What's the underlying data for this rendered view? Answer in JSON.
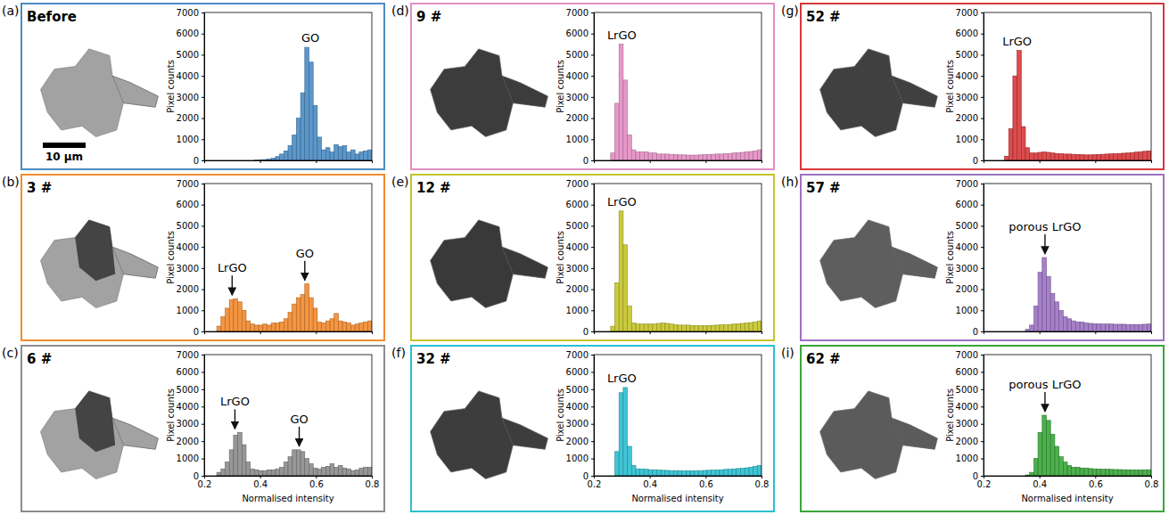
{
  "chart_data": [
    {
      "type": "histogram",
      "panel": "(a)",
      "title": "Before",
      "color": "#4a8cc4",
      "scale_bar": "10 μm",
      "bins": [
        0.2,
        0.215,
        0.23,
        0.245,
        0.26,
        0.275,
        0.29,
        0.305,
        0.32,
        0.335,
        0.35,
        0.365,
        0.38,
        0.395,
        0.41,
        0.425,
        0.44,
        0.455,
        0.47,
        0.485,
        0.5,
        0.515,
        0.53,
        0.545,
        0.56,
        0.575,
        0.59,
        0.605,
        0.62,
        0.635,
        0.65,
        0.665,
        0.68,
        0.695,
        0.71,
        0.725,
        0.74,
        0.755,
        0.77,
        0.785,
        0.8
      ],
      "values": [
        0,
        0,
        0,
        0,
        0,
        0,
        0,
        0,
        0,
        0,
        0,
        0,
        10,
        20,
        40,
        60,
        100,
        180,
        300,
        450,
        700,
        1200,
        2000,
        3200,
        5350,
        4650,
        2600,
        1100,
        500,
        600,
        400,
        750,
        650,
        700,
        400,
        500,
        300,
        400,
        450,
        500
      ],
      "xlim": [
        0.2,
        0.8
      ],
      "ylim": [
        0,
        7000
      ],
      "xticks": [
        0.2,
        0.4,
        0.6,
        0.8
      ],
      "yticks": [
        0,
        1000,
        2000,
        3000,
        4000,
        5000,
        6000,
        7000
      ],
      "y_label": "Pixel counts",
      "tick_labels": "y",
      "annotations": [
        {
          "text": "GO",
          "x": 0.58
        }
      ]
    },
    {
      "type": "histogram",
      "panel": "(b)",
      "title": "3 #",
      "color": "#f28a2e",
      "bins": [
        0.2,
        0.215,
        0.23,
        0.245,
        0.26,
        0.275,
        0.29,
        0.305,
        0.32,
        0.335,
        0.35,
        0.365,
        0.38,
        0.395,
        0.41,
        0.425,
        0.44,
        0.455,
        0.47,
        0.485,
        0.5,
        0.515,
        0.53,
        0.545,
        0.56,
        0.575,
        0.59,
        0.605,
        0.62,
        0.635,
        0.65,
        0.665,
        0.68,
        0.695,
        0.71,
        0.725,
        0.74,
        0.755,
        0.77,
        0.785,
        0.8
      ],
      "values": [
        0,
        0,
        0,
        250,
        700,
        1100,
        1500,
        1550,
        1400,
        1000,
        500,
        350,
        300,
        300,
        350,
        300,
        400,
        400,
        450,
        600,
        900,
        1300,
        1600,
        1750,
        2250,
        1600,
        1100,
        450,
        400,
        500,
        600,
        850,
        500,
        450,
        400,
        300,
        350,
        400,
        450,
        500
      ],
      "xlim": [
        0.2,
        0.8
      ],
      "ylim": [
        0,
        7000
      ],
      "xticks": [
        0.2,
        0.4,
        0.6,
        0.8
      ],
      "yticks": [
        0,
        1000,
        2000,
        3000,
        4000,
        5000,
        6000,
        7000
      ],
      "y_label": "Pixel counts",
      "tick_labels": "y",
      "annotations": [
        {
          "text": "LrGO",
          "x": 0.3,
          "marker": "arrow"
        },
        {
          "text": "GO",
          "x": 0.56,
          "marker": "arrow"
        }
      ]
    },
    {
      "type": "histogram",
      "panel": "(c)",
      "title": "6 #",
      "color": "#8c8c8c",
      "bins": [
        0.2,
        0.215,
        0.23,
        0.245,
        0.26,
        0.275,
        0.29,
        0.305,
        0.32,
        0.335,
        0.35,
        0.365,
        0.38,
        0.395,
        0.41,
        0.425,
        0.44,
        0.455,
        0.47,
        0.485,
        0.5,
        0.515,
        0.53,
        0.545,
        0.56,
        0.575,
        0.59,
        0.605,
        0.62,
        0.635,
        0.65,
        0.665,
        0.68,
        0.695,
        0.71,
        0.725,
        0.74,
        0.755,
        0.77,
        0.785,
        0.8
      ],
      "values": [
        0,
        0,
        0,
        200,
        400,
        800,
        1500,
        2350,
        2500,
        1800,
        800,
        400,
        350,
        300,
        300,
        350,
        350,
        400,
        500,
        800,
        1100,
        1500,
        1500,
        1400,
        1000,
        700,
        450,
        400,
        500,
        550,
        700,
        500,
        600,
        450,
        400,
        300,
        350,
        450,
        500,
        500
      ],
      "xlim": [
        0.2,
        0.8
      ],
      "ylim": [
        0,
        7000
      ],
      "xticks": [
        0.2,
        0.4,
        0.6,
        0.8
      ],
      "yticks": [
        0,
        1000,
        2000,
        3000,
        4000,
        5000,
        6000,
        7000
      ],
      "y_label": "Pixel counts",
      "x_label": "Normalised intensity",
      "annotations": [
        {
          "text": "LrGO",
          "x": 0.31,
          "marker": "arrow"
        },
        {
          "text": "GO",
          "x": 0.54,
          "marker": "arrow"
        }
      ]
    },
    {
      "type": "histogram",
      "panel": "(d)",
      "title": "9 #",
      "color": "#e38ec3",
      "bins": [
        0.2,
        0.215,
        0.23,
        0.245,
        0.26,
        0.275,
        0.29,
        0.305,
        0.32,
        0.335,
        0.35,
        0.365,
        0.38,
        0.395,
        0.41,
        0.425,
        0.44,
        0.455,
        0.47,
        0.485,
        0.5,
        0.515,
        0.53,
        0.545,
        0.56,
        0.575,
        0.59,
        0.605,
        0.62,
        0.635,
        0.65,
        0.665,
        0.68,
        0.695,
        0.71,
        0.725,
        0.74,
        0.755,
        0.77,
        0.785,
        0.8
      ],
      "values": [
        0,
        0,
        0,
        0,
        350,
        2700,
        5500,
        3800,
        1200,
        500,
        400,
        400,
        400,
        350,
        350,
        300,
        300,
        300,
        280,
        270,
        260,
        260,
        250,
        250,
        250,
        260,
        270,
        280,
        290,
        300,
        300,
        320,
        330,
        350,
        360,
        380,
        400,
        420,
        450,
        500
      ],
      "xlim": [
        0.2,
        0.8
      ],
      "ylim": [
        0,
        7000
      ],
      "xticks": [
        0.2,
        0.4,
        0.6,
        0.8
      ],
      "yticks": [
        0,
        1000,
        2000,
        3000,
        4000,
        5000,
        6000,
        7000
      ],
      "y_label": "Pixel counts",
      "tick_labels": "y",
      "annotations": [
        {
          "text": "LrGO",
          "x": 0.3
        }
      ]
    },
    {
      "type": "histogram",
      "panel": "(e)",
      "title": "12 #",
      "color": "#c4c42a",
      "bins": [
        0.2,
        0.215,
        0.23,
        0.245,
        0.26,
        0.275,
        0.29,
        0.305,
        0.32,
        0.335,
        0.35,
        0.365,
        0.38,
        0.395,
        0.41,
        0.425,
        0.44,
        0.455,
        0.47,
        0.485,
        0.5,
        0.515,
        0.53,
        0.545,
        0.56,
        0.575,
        0.59,
        0.605,
        0.62,
        0.635,
        0.65,
        0.665,
        0.68,
        0.695,
        0.71,
        0.725,
        0.74,
        0.755,
        0.77,
        0.785,
        0.8
      ],
      "values": [
        0,
        0,
        0,
        0,
        250,
        2300,
        5700,
        4100,
        1200,
        400,
        350,
        350,
        350,
        350,
        350,
        380,
        400,
        380,
        350,
        320,
        300,
        300,
        300,
        280,
        280,
        270,
        270,
        280,
        290,
        300,
        310,
        320,
        330,
        350,
        360,
        380,
        400,
        420,
        450,
        500
      ],
      "xlim": [
        0.2,
        0.8
      ],
      "ylim": [
        0,
        7000
      ],
      "xticks": [
        0.2,
        0.4,
        0.6,
        0.8
      ],
      "yticks": [
        0,
        1000,
        2000,
        3000,
        4000,
        5000,
        6000,
        7000
      ],
      "y_label": "Pixel counts",
      "tick_labels": "y",
      "annotations": [
        {
          "text": "LrGO",
          "x": 0.3
        }
      ]
    },
    {
      "type": "histogram",
      "panel": "(f)",
      "title": "32 #",
      "color": "#2cbfd0",
      "bins": [
        0.2,
        0.215,
        0.23,
        0.245,
        0.26,
        0.275,
        0.29,
        0.305,
        0.32,
        0.335,
        0.35,
        0.365,
        0.38,
        0.395,
        0.41,
        0.425,
        0.44,
        0.455,
        0.47,
        0.485,
        0.5,
        0.515,
        0.53,
        0.545,
        0.56,
        0.575,
        0.59,
        0.605,
        0.62,
        0.635,
        0.65,
        0.665,
        0.68,
        0.695,
        0.71,
        0.725,
        0.74,
        0.755,
        0.77,
        0.785,
        0.8
      ],
      "values": [
        0,
        0,
        0,
        0,
        0,
        1400,
        4800,
        5100,
        1700,
        600,
        400,
        400,
        380,
        350,
        350,
        330,
        320,
        310,
        300,
        300,
        300,
        290,
        290,
        290,
        300,
        300,
        310,
        320,
        330,
        340,
        350,
        370,
        380,
        400,
        420,
        440,
        460,
        500,
        550,
        600
      ],
      "xlim": [
        0.2,
        0.8
      ],
      "ylim": [
        0,
        7000
      ],
      "xticks": [
        0.2,
        0.4,
        0.6,
        0.8
      ],
      "yticks": [
        0,
        1000,
        2000,
        3000,
        4000,
        5000,
        6000,
        7000
      ],
      "y_label": "Pixel counts",
      "x_label": "Normalised intensity",
      "annotations": [
        {
          "text": "LrGO",
          "x": 0.3
        }
      ]
    },
    {
      "type": "histogram",
      "panel": "(g)",
      "title": "52 #",
      "color": "#d8383a",
      "bins": [
        0.2,
        0.215,
        0.23,
        0.245,
        0.26,
        0.275,
        0.29,
        0.305,
        0.32,
        0.335,
        0.35,
        0.365,
        0.38,
        0.395,
        0.41,
        0.425,
        0.44,
        0.455,
        0.47,
        0.485,
        0.5,
        0.515,
        0.53,
        0.545,
        0.56,
        0.575,
        0.59,
        0.605,
        0.62,
        0.635,
        0.65,
        0.665,
        0.68,
        0.695,
        0.71,
        0.725,
        0.74,
        0.755,
        0.77,
        0.785,
        0.8
      ],
      "values": [
        0,
        0,
        0,
        0,
        0,
        200,
        1500,
        4000,
        5200,
        1600,
        600,
        350,
        350,
        380,
        400,
        380,
        350,
        330,
        320,
        300,
        300,
        290,
        280,
        270,
        260,
        260,
        270,
        280,
        290,
        300,
        310,
        320,
        330,
        340,
        350,
        370,
        390,
        410,
        430,
        450
      ],
      "xlim": [
        0.2,
        0.8
      ],
      "ylim": [
        0,
        7000
      ],
      "xticks": [
        0.2,
        0.4,
        0.6,
        0.8
      ],
      "yticks": [
        0,
        1000,
        2000,
        3000,
        4000,
        5000,
        6000,
        7000
      ],
      "y_label": "Pixel counts",
      "tick_labels": "y",
      "annotations": [
        {
          "text": "LrGO",
          "x": 0.32
        }
      ]
    },
    {
      "type": "histogram",
      "panel": "(h)",
      "title": "57 #",
      "color": "#9c72c2",
      "bins": [
        0.2,
        0.215,
        0.23,
        0.245,
        0.26,
        0.275,
        0.29,
        0.305,
        0.32,
        0.335,
        0.35,
        0.365,
        0.38,
        0.395,
        0.41,
        0.425,
        0.44,
        0.455,
        0.47,
        0.485,
        0.5,
        0.515,
        0.53,
        0.545,
        0.56,
        0.575,
        0.59,
        0.605,
        0.62,
        0.635,
        0.65,
        0.665,
        0.68,
        0.695,
        0.71,
        0.725,
        0.74,
        0.755,
        0.77,
        0.785,
        0.8
      ],
      "values": [
        0,
        0,
        0,
        0,
        0,
        0,
        0,
        0,
        0,
        0,
        100,
        300,
        1200,
        2800,
        3500,
        2600,
        1800,
        1400,
        1000,
        700,
        600,
        500,
        450,
        450,
        400,
        380,
        370,
        360,
        350,
        350,
        350,
        340,
        340,
        340,
        330,
        330,
        330,
        330,
        340,
        350
      ],
      "xlim": [
        0.2,
        0.8
      ],
      "ylim": [
        0,
        7000
      ],
      "xticks": [
        0.2,
        0.4,
        0.6,
        0.8
      ],
      "yticks": [
        0,
        1000,
        2000,
        3000,
        4000,
        5000,
        6000,
        7000
      ],
      "y_label": "Pixel counts",
      "tick_labels": "y",
      "annotations": [
        {
          "text": "porous LrGO",
          "x": 0.42,
          "marker": "arrow"
        }
      ]
    },
    {
      "type": "histogram",
      "panel": "(i)",
      "title": "62 #",
      "color": "#3aa63a",
      "bins": [
        0.2,
        0.215,
        0.23,
        0.245,
        0.26,
        0.275,
        0.29,
        0.305,
        0.32,
        0.335,
        0.35,
        0.365,
        0.38,
        0.395,
        0.41,
        0.425,
        0.44,
        0.455,
        0.47,
        0.485,
        0.5,
        0.515,
        0.53,
        0.545,
        0.56,
        0.575,
        0.59,
        0.605,
        0.62,
        0.635,
        0.65,
        0.665,
        0.68,
        0.695,
        0.71,
        0.725,
        0.74,
        0.755,
        0.77,
        0.785,
        0.8
      ],
      "values": [
        0,
        0,
        0,
        0,
        0,
        0,
        0,
        0,
        0,
        0,
        50,
        200,
        1000,
        2500,
        3500,
        3200,
        2400,
        1700,
        1100,
        800,
        600,
        500,
        500,
        450,
        450,
        420,
        400,
        400,
        380,
        380,
        370,
        360,
        360,
        350,
        350,
        340,
        340,
        340,
        350,
        350
      ],
      "xlim": [
        0.2,
        0.8
      ],
      "ylim": [
        0,
        7000
      ],
      "xticks": [
        0.2,
        0.4,
        0.6,
        0.8
      ],
      "yticks": [
        0,
        1000,
        2000,
        3000,
        4000,
        5000,
        6000,
        7000
      ],
      "y_label": "Pixel counts",
      "x_label": "Normalised intensity",
      "annotations": [
        {
          "text": "porous LrGO",
          "x": 0.42,
          "marker": "arrow"
        }
      ]
    }
  ]
}
